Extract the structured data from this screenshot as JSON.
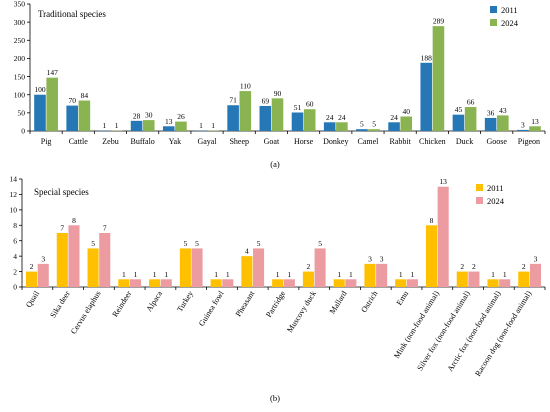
{
  "chart_data": [
    {
      "type": "bar",
      "title": "Traditional species",
      "caption": "(a)",
      "xlabel": "",
      "ylabel": "",
      "ylim": [
        0,
        350
      ],
      "yticks": [
        0,
        50,
        100,
        150,
        200,
        250,
        300,
        350
      ],
      "grid": false,
      "legend_position": "top-right",
      "categories": [
        "Pig",
        "Cattle",
        "Zebu",
        "Buffalo",
        "Yak",
        "Gayal",
        "Sheep",
        "Goat",
        "Horse",
        "Donkey",
        "Camel",
        "Rabbit",
        "Chicken",
        "Duck",
        "Goose",
        "Pigeon"
      ],
      "series": [
        {
          "name": "2011",
          "color": "#2577b5",
          "values": [
            100,
            70,
            1,
            28,
            13,
            1,
            71,
            69,
            51,
            24,
            5,
            24,
            188,
            45,
            36,
            3
          ]
        },
        {
          "name": "2024",
          "color": "#8ab451",
          "values": [
            147,
            84,
            1,
            30,
            26,
            1,
            110,
            90,
            60,
            24,
            5,
            40,
            289,
            66,
            43,
            13
          ]
        }
      ]
    },
    {
      "type": "bar",
      "title": "Special species",
      "caption": "(b)",
      "xlabel": "",
      "ylabel": "",
      "ylim": [
        0,
        14
      ],
      "yticks": [
        0,
        2,
        4,
        6,
        8,
        10,
        12,
        14
      ],
      "grid": false,
      "legend_position": "top-right",
      "categories": [
        "Quail",
        "Sika deer",
        "Cervus elaphus",
        "Reindeer",
        "Alpaca",
        "Turkey",
        "Guinea fowl",
        "Pheasant",
        "Partridge",
        "Muscovy duck",
        "Mallard",
        "Ostrich",
        "Emu",
        "Mink (non-food animal)",
        "Silver fox (non-food animal)",
        "Arctic fox (non-food animal)",
        "Racoon dog (non-food animal)"
      ],
      "series": [
        {
          "name": "2011",
          "color": "#ffc000",
          "values": [
            2,
            7,
            5,
            1,
            1,
            5,
            1,
            4,
            1,
            2,
            1,
            3,
            1,
            8,
            2,
            1,
            2
          ]
        },
        {
          "name": "2024",
          "color": "#ec9ba0",
          "values": [
            3,
            8,
            7,
            1,
            1,
            5,
            1,
            5,
            1,
            5,
            1,
            3,
            1,
            13,
            2,
            1,
            3
          ]
        }
      ]
    }
  ]
}
